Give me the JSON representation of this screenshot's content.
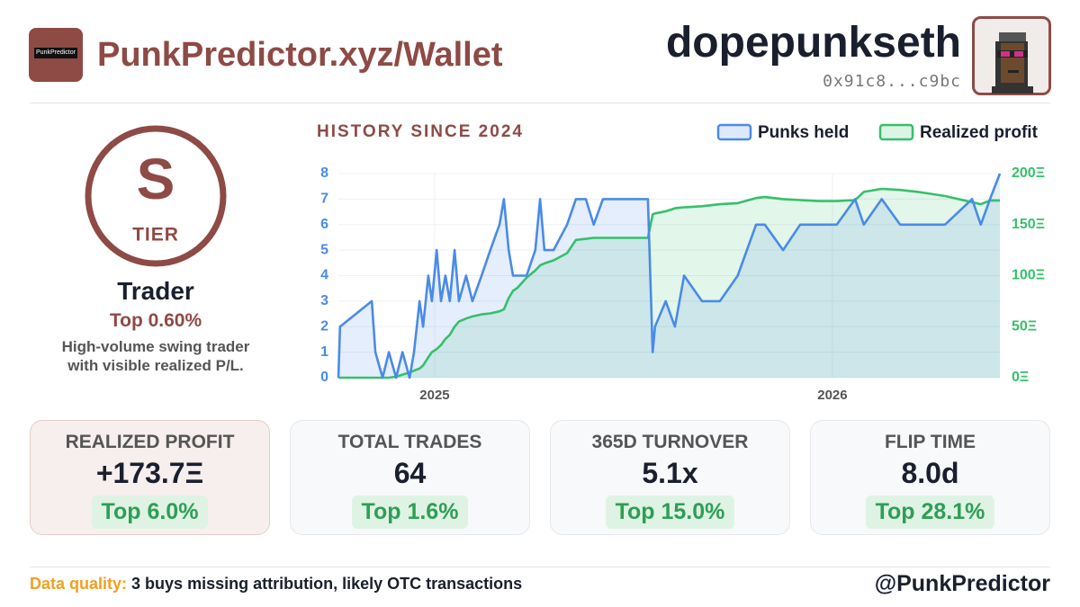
{
  "header": {
    "logo_text": "PunkPredictor",
    "site": "PunkPredictor.xyz/Wallet",
    "username": "dopepunkseth",
    "address": "0x91c8...c9bc"
  },
  "tier": {
    "grade": "S",
    "label": "TIER",
    "name": "Trader",
    "rank": "Top 0.60%",
    "description": "High-volume swing trader with visible realized P/L."
  },
  "chart_data": {
    "type": "line",
    "title": "HISTORY SINCE 2024",
    "x": [
      2024.758,
      2024.762,
      2024.842,
      2024.851,
      2024.869,
      2024.885,
      2024.903,
      2024.919,
      2024.937,
      2024.948,
      2024.962,
      2024.971,
      2024.984,
      2024.993,
      2025.005,
      2025.016,
      2025.027,
      2025.038,
      2025.05,
      2025.061,
      2025.079,
      2025.095,
      2025.118,
      2025.14,
      2025.163,
      2025.174,
      2025.186,
      2025.197,
      2025.208,
      2025.231,
      2025.253,
      2025.265,
      2025.276,
      2025.299,
      2025.333,
      2025.355,
      2025.38,
      2025.4,
      2025.423,
      2025.446,
      2025.468,
      2025.491,
      2025.536,
      2025.548,
      2025.554,
      2025.581,
      2025.604,
      2025.627,
      2025.672,
      2025.717,
      2025.762,
      2025.808,
      2025.83,
      2025.876,
      2025.919,
      2025.966,
      2026.011,
      2026.057,
      2026.079,
      2026.124,
      2026.17,
      2026.215,
      2026.283,
      2026.351,
      2026.373,
      2026.396,
      2026.421
    ],
    "xlim": [
      2024.758,
      2026.421
    ],
    "xticks": [
      2025,
      2026
    ],
    "ylim": [
      0,
      8
    ],
    "yticks": [
      0,
      1,
      2,
      3,
      4,
      5,
      6,
      7,
      8
    ],
    "y2lim": [
      0,
      200
    ],
    "y2ticks": [
      {
        "value": 0,
        "label": "0Ξ"
      },
      {
        "value": 50,
        "label": "50Ξ"
      },
      {
        "value": 100,
        "label": "100Ξ"
      },
      {
        "value": 150,
        "label": "150Ξ"
      },
      {
        "value": 200,
        "label": "200Ξ"
      }
    ],
    "grid": true,
    "legend": "top-right",
    "series": [
      {
        "name": "Punks held",
        "color": "#4a8ae8",
        "values": [
          0,
          2,
          3,
          1,
          0,
          1,
          0,
          1,
          0,
          1,
          3,
          2,
          4,
          3,
          5,
          3,
          4,
          3,
          5,
          3,
          4,
          3,
          4,
          5,
          6,
          7,
          5,
          4,
          4,
          4,
          5,
          7,
          5,
          5,
          6,
          7,
          7,
          6,
          7,
          7,
          7,
          7,
          7,
          1,
          2,
          3,
          2,
          4,
          3,
          3,
          4,
          6,
          6,
          5,
          6,
          6,
          6,
          7,
          6,
          7,
          6,
          6,
          6,
          7,
          6,
          7,
          8
        ]
      },
      {
        "name": "Realized profit",
        "color": "#35c06a",
        "axis": "y2",
        "values": [
          0,
          0,
          0,
          0,
          0,
          0,
          1,
          3,
          5,
          7,
          9,
          12,
          20,
          25,
          28,
          32,
          38,
          42,
          50,
          55,
          58,
          60,
          62,
          63,
          65,
          67,
          78,
          85,
          88,
          98,
          105,
          110,
          112,
          115,
          122,
          135,
          136,
          137,
          137,
          137,
          137,
          137,
          137,
          160,
          161,
          163,
          166,
          167,
          168,
          170,
          171,
          176,
          177,
          175,
          174,
          173,
          173,
          174,
          182,
          185,
          184,
          182,
          178,
          172,
          170,
          173.7,
          173.7
        ]
      }
    ]
  },
  "stats": [
    {
      "label": "REALIZED PROFIT",
      "value": "+173.7Ξ",
      "rank": "Top 6.0%"
    },
    {
      "label": "TOTAL TRADES",
      "value": "64",
      "rank": "Top 1.6%"
    },
    {
      "label": "365D TURNOVER",
      "value": "5.1x",
      "rank": "Top 15.0%"
    },
    {
      "label": "FLIP TIME",
      "value": "8.0d",
      "rank": "Top 28.1%"
    }
  ],
  "footer": {
    "quality_label": "Data quality:",
    "quality_text": "3 buys missing attribution, likely OTC transactions",
    "handle": "@PunkPredictor"
  }
}
